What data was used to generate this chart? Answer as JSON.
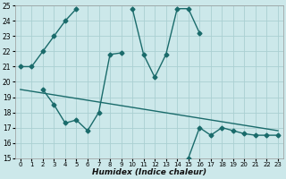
{
  "xlabel": "Humidex (Indice chaleur)",
  "background_color": "#cce8ea",
  "grid_color": "#aacfd2",
  "line_color": "#1a6b6b",
  "xlim": [
    -0.5,
    23.5
  ],
  "ylim": [
    15,
    25
  ],
  "xticks": [
    0,
    1,
    2,
    3,
    4,
    5,
    6,
    7,
    8,
    9,
    10,
    11,
    12,
    13,
    14,
    15,
    16,
    17,
    18,
    19,
    20,
    21,
    22,
    23
  ],
  "yticks": [
    15,
    16,
    17,
    18,
    19,
    20,
    21,
    22,
    23,
    24,
    25
  ],
  "curve1_x": [
    0,
    1,
    2,
    3,
    4,
    5,
    10,
    11,
    12,
    13,
    14,
    15,
    16,
    15,
    16,
    17,
    18,
    19,
    20,
    21,
    22,
    23
  ],
  "curve1_y": [
    21.0,
    21.0,
    22.0,
    23.0,
    24.0,
    24.8,
    24.8,
    21.8,
    20.3,
    21.8,
    24.8,
    24.8,
    23.2,
    15.0,
    17.0,
    16.5,
    17.0,
    16.8,
    16.6,
    16.5,
    16.5,
    16.5
  ],
  "curve2_x": [
    2,
    3,
    4,
    5,
    6,
    7,
    8,
    9
  ],
  "curve2_y": [
    19.5,
    18.5,
    17.3,
    17.5,
    16.8,
    18.0,
    21.8,
    21.9
  ],
  "trend_x": [
    0,
    23
  ],
  "trend_y": [
    19.5,
    16.8
  ],
  "markersize": 2.5,
  "linewidth": 1.0
}
